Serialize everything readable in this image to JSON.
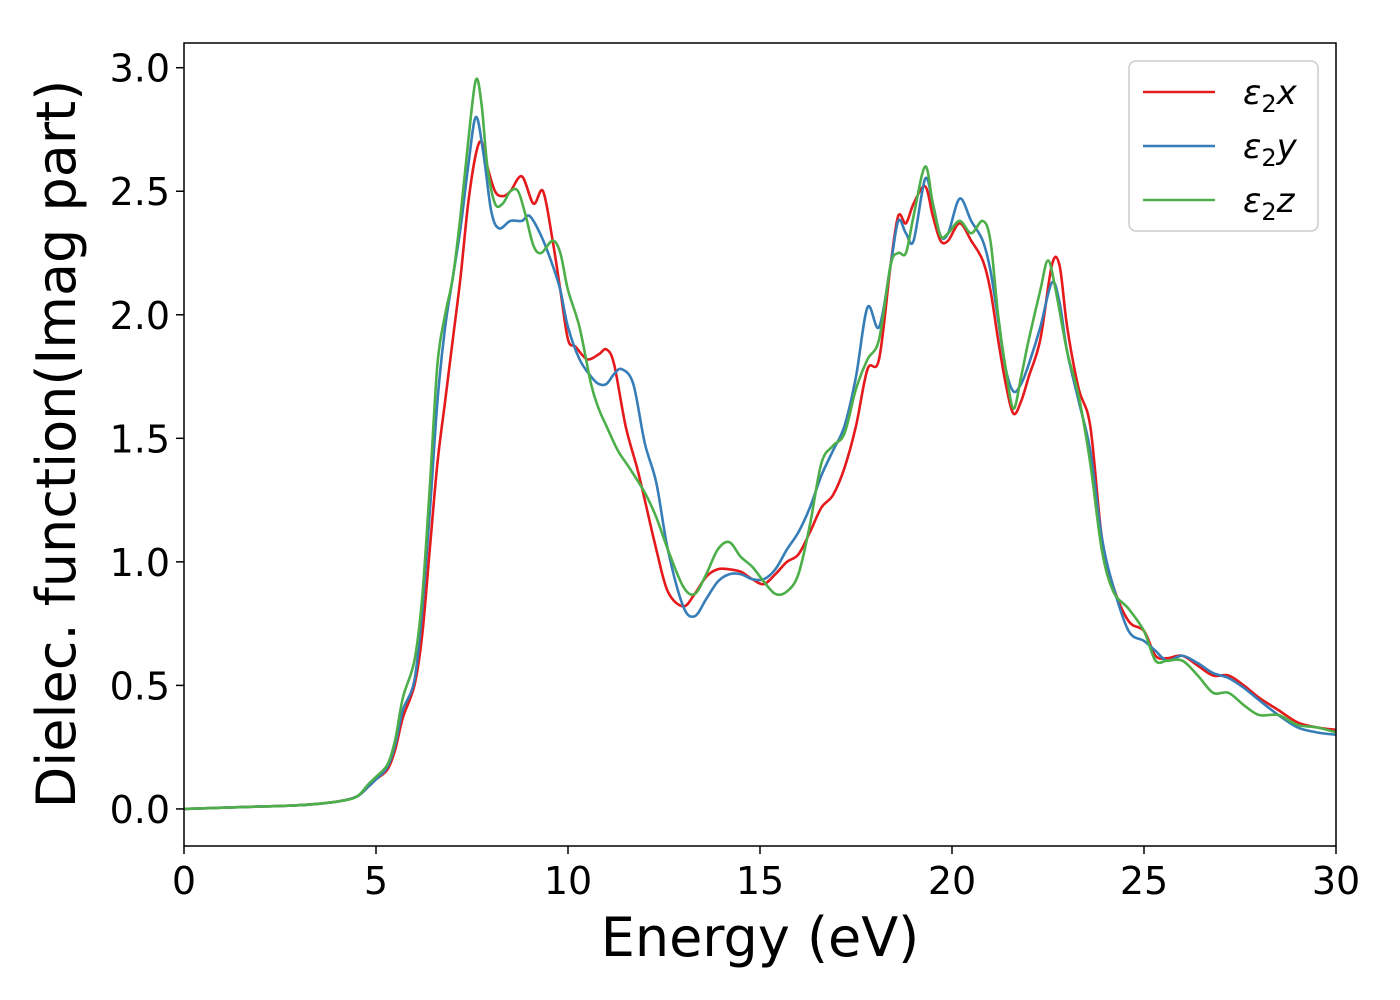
{
  "chart_data": {
    "type": "line",
    "title": "",
    "xlabel": "Energy (eV)",
    "ylabel": "Dielec. function(Imag part)",
    "xlim": [
      0,
      30
    ],
    "ylim": [
      -0.15,
      3.1
    ],
    "xticks": [
      0,
      5,
      10,
      15,
      20,
      25,
      30
    ],
    "xtick_labels": [
      "0",
      "5",
      "10",
      "15",
      "20",
      "25",
      "30"
    ],
    "yticks": [
      0.0,
      0.5,
      1.0,
      1.5,
      2.0,
      2.5,
      3.0
    ],
    "ytick_labels": [
      "0.0",
      "0.5",
      "1.0",
      "1.5",
      "2.0",
      "2.5",
      "3.0"
    ],
    "grid": false,
    "legend": "top-right",
    "series": [
      {
        "name": "ε2x",
        "legend_base": "ε",
        "legend_sub": "2",
        "legend_suffix": "x",
        "color": "#e41a1c",
        "x": [
          0,
          1,
          2,
          3,
          4,
          4.5,
          4.8,
          5,
          5.3,
          5.5,
          5.7,
          6,
          6.2,
          6.4,
          6.6,
          6.8,
          7,
          7.2,
          7.4,
          7.6,
          7.75,
          7.9,
          8.1,
          8.3,
          8.5,
          8.8,
          9.1,
          9.35,
          9.6,
          9.8,
          10,
          10.2,
          10.5,
          10.8,
          11,
          11.2,
          11.5,
          11.8,
          12,
          12.3,
          12.6,
          13,
          13.3,
          13.6,
          13.9,
          14.2,
          14.5,
          14.8,
          15.1,
          15.4,
          15.7,
          16,
          16.3,
          16.6,
          16.9,
          17.2,
          17.5,
          17.8,
          18.1,
          18.4,
          18.6,
          18.8,
          19,
          19.3,
          19.5,
          19.7,
          19.9,
          20.2,
          20.5,
          20.8,
          21,
          21.2,
          21.4,
          21.6,
          21.8,
          22,
          22.3,
          22.6,
          22.8,
          23,
          23.3,
          23.6,
          23.9,
          24.2,
          24.6,
          25,
          25.3,
          25.6,
          26,
          26.4,
          26.8,
          27.2,
          27.6,
          28,
          28.5,
          29,
          29.5,
          30
        ],
        "y": [
          0.0,
          0.005,
          0.01,
          0.015,
          0.03,
          0.05,
          0.09,
          0.12,
          0.16,
          0.24,
          0.37,
          0.5,
          0.7,
          1.05,
          1.4,
          1.65,
          1.9,
          2.15,
          2.45,
          2.65,
          2.7,
          2.6,
          2.5,
          2.48,
          2.5,
          2.56,
          2.45,
          2.5,
          2.3,
          2.1,
          1.9,
          1.87,
          1.82,
          1.84,
          1.86,
          1.8,
          1.55,
          1.38,
          1.25,
          1.05,
          0.88,
          0.82,
          0.87,
          0.94,
          0.97,
          0.97,
          0.96,
          0.93,
          0.91,
          0.95,
          1.0,
          1.03,
          1.12,
          1.22,
          1.27,
          1.38,
          1.55,
          1.78,
          1.82,
          2.2,
          2.4,
          2.37,
          2.45,
          2.52,
          2.4,
          2.3,
          2.3,
          2.37,
          2.3,
          2.22,
          2.1,
          1.9,
          1.72,
          1.6,
          1.65,
          1.75,
          1.9,
          2.2,
          2.2,
          1.95,
          1.7,
          1.55,
          1.1,
          0.9,
          0.76,
          0.72,
          0.62,
          0.61,
          0.62,
          0.58,
          0.54,
          0.54,
          0.5,
          0.45,
          0.4,
          0.35,
          0.33,
          0.32
        ]
      },
      {
        "name": "ε2y",
        "legend_base": "ε",
        "legend_sub": "2",
        "legend_suffix": "y",
        "color": "#377eb8",
        "x": [
          0,
          1,
          2,
          3,
          4,
          4.5,
          4.8,
          5,
          5.3,
          5.5,
          5.7,
          6,
          6.2,
          6.4,
          6.6,
          6.8,
          7,
          7.2,
          7.4,
          7.6,
          7.8,
          8,
          8.2,
          8.5,
          8.8,
          9,
          9.3,
          9.6,
          9.8,
          10,
          10.3,
          10.6,
          10.8,
          11,
          11.2,
          11.4,
          11.7,
          12,
          12.3,
          12.6,
          13,
          13.3,
          13.6,
          13.9,
          14.2,
          14.5,
          14.8,
          15.1,
          15.4,
          15.7,
          16,
          16.3,
          16.6,
          16.9,
          17.2,
          17.5,
          17.8,
          18.1,
          18.4,
          18.6,
          18.8,
          19,
          19.3,
          19.5,
          19.7,
          19.9,
          20.2,
          20.5,
          20.8,
          21,
          21.2,
          21.4,
          21.6,
          21.8,
          22,
          22.3,
          22.6,
          22.8,
          23,
          23.3,
          23.6,
          23.9,
          24.2,
          24.6,
          25,
          25.3,
          25.6,
          26,
          26.4,
          26.8,
          27.2,
          27.6,
          28,
          28.5,
          29,
          29.5,
          30
        ],
        "y": [
          0.0,
          0.005,
          0.01,
          0.015,
          0.03,
          0.05,
          0.09,
          0.12,
          0.17,
          0.26,
          0.4,
          0.52,
          0.8,
          1.2,
          1.65,
          1.95,
          2.15,
          2.35,
          2.6,
          2.8,
          2.65,
          2.42,
          2.35,
          2.38,
          2.38,
          2.4,
          2.32,
          2.2,
          2.1,
          1.95,
          1.82,
          1.75,
          1.72,
          1.72,
          1.76,
          1.78,
          1.72,
          1.48,
          1.32,
          1.05,
          0.82,
          0.78,
          0.85,
          0.92,
          0.95,
          0.95,
          0.93,
          0.93,
          0.97,
          1.05,
          1.12,
          1.22,
          1.35,
          1.45,
          1.55,
          1.75,
          2.03,
          1.95,
          2.2,
          2.38,
          2.33,
          2.3,
          2.55,
          2.45,
          2.32,
          2.33,
          2.47,
          2.38,
          2.3,
          2.18,
          1.98,
          1.78,
          1.69,
          1.72,
          1.8,
          1.95,
          2.13,
          2.05,
          1.85,
          1.65,
          1.45,
          1.1,
          0.9,
          0.72,
          0.68,
          0.64,
          0.6,
          0.62,
          0.59,
          0.55,
          0.53,
          0.49,
          0.44,
          0.38,
          0.33,
          0.31,
          0.3
        ]
      },
      {
        "name": "ε2z",
        "legend_base": "ε",
        "legend_sub": "2",
        "legend_suffix": "z",
        "color": "#4daf4a",
        "x": [
          0,
          1,
          2,
          3,
          4,
          4.5,
          4.8,
          5,
          5.3,
          5.5,
          5.7,
          6,
          6.2,
          6.4,
          6.6,
          6.8,
          7,
          7.2,
          7.4,
          7.6,
          7.75,
          7.9,
          8.1,
          8.3,
          8.5,
          8.7,
          8.9,
          9.1,
          9.3,
          9.6,
          9.8,
          10,
          10.3,
          10.6,
          10.8,
          11,
          11.3,
          11.6,
          12,
          12.3,
          12.6,
          13,
          13.3,
          13.6,
          13.9,
          14.2,
          14.5,
          14.8,
          15.1,
          15.4,
          15.7,
          16,
          16.3,
          16.6,
          16.9,
          17.2,
          17.5,
          17.8,
          18.1,
          18.4,
          18.6,
          18.8,
          19,
          19.3,
          19.5,
          19.7,
          19.9,
          20.2,
          20.5,
          20.8,
          21,
          21.2,
          21.4,
          21.6,
          21.8,
          22,
          22.3,
          22.5,
          22.7,
          23,
          23.3,
          23.6,
          23.9,
          24.2,
          24.6,
          25,
          25.3,
          25.6,
          26,
          26.4,
          26.8,
          27.2,
          27.6,
          28,
          28.5,
          29,
          29.5,
          30
        ],
        "y": [
          0.0,
          0.005,
          0.01,
          0.015,
          0.03,
          0.05,
          0.1,
          0.13,
          0.18,
          0.28,
          0.45,
          0.6,
          0.85,
          1.3,
          1.8,
          2.0,
          2.15,
          2.4,
          2.7,
          2.95,
          2.85,
          2.6,
          2.45,
          2.45,
          2.5,
          2.5,
          2.4,
          2.28,
          2.25,
          2.3,
          2.25,
          2.1,
          1.95,
          1.72,
          1.62,
          1.55,
          1.45,
          1.38,
          1.28,
          1.18,
          1.05,
          0.9,
          0.87,
          0.95,
          1.05,
          1.08,
          1.02,
          0.98,
          0.92,
          0.87,
          0.88,
          0.95,
          1.15,
          1.4,
          1.47,
          1.52,
          1.7,
          1.82,
          1.9,
          2.2,
          2.25,
          2.25,
          2.4,
          2.6,
          2.45,
          2.32,
          2.33,
          2.38,
          2.33,
          2.38,
          2.3,
          2.0,
          1.78,
          1.62,
          1.75,
          1.9,
          2.1,
          2.22,
          2.1,
          1.85,
          1.67,
          1.4,
          1.05,
          0.88,
          0.81,
          0.72,
          0.6,
          0.6,
          0.6,
          0.54,
          0.47,
          0.47,
          0.42,
          0.38,
          0.38,
          0.34,
          0.33,
          0.31
        ]
      }
    ]
  }
}
